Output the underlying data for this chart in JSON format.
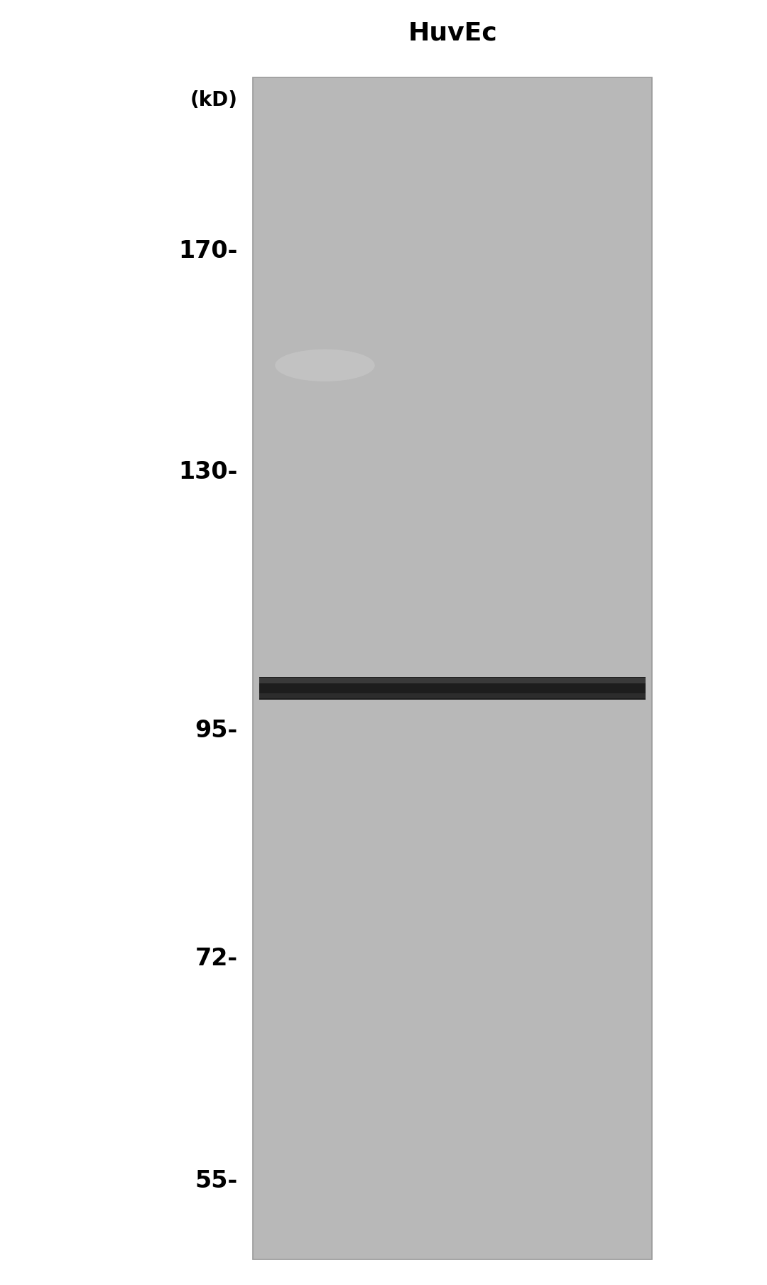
{
  "title": "HuvEc",
  "kd_label": "(kD)",
  "mw_markers": [
    170,
    130,
    95,
    72,
    55
  ],
  "background_color": "#ffffff",
  "gel_color": "#b8b8b8",
  "gel_border_color": "#999999",
  "band_color": "#111111",
  "title_fontsize": 26,
  "label_fontsize": 24,
  "kd_fontsize": 20,
  "fig_width": 10.8,
  "fig_height": 18.09,
  "dpi": 100
}
